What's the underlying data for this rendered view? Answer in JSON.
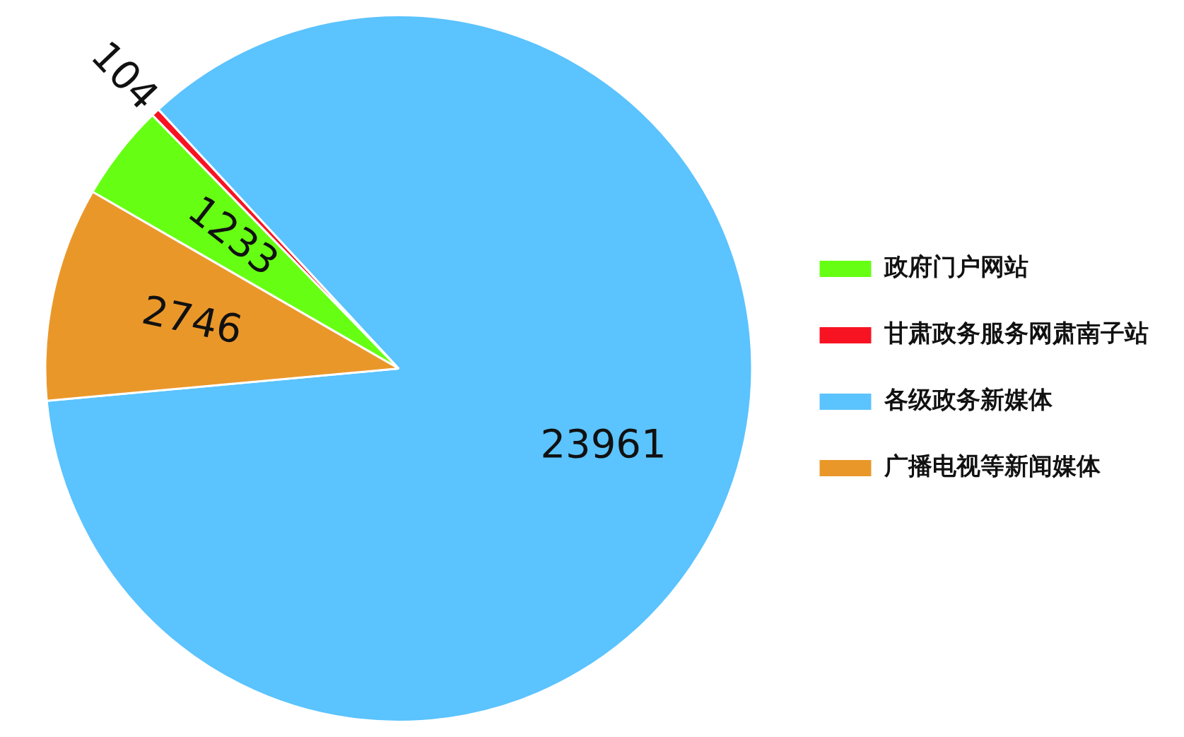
{
  "chart_data": {
    "type": "pie",
    "categories": [
      "政府门户网站",
      "甘肃政务服务网肃南子站",
      "各级政务新媒体",
      "广播电视等新闻媒体"
    ],
    "values": [
      1233,
      104,
      23961,
      2746
    ],
    "colors": [
      "#66ff14",
      "#f81323",
      "#5bc3fe",
      "#ea972a"
    ],
    "data_labels": true,
    "legend": "right"
  }
}
